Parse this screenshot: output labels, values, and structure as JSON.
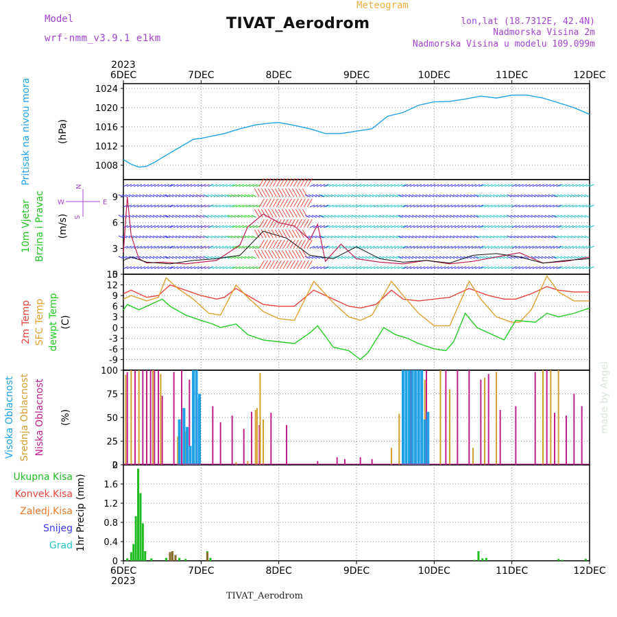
{
  "header": {
    "model_label": "Model",
    "model_name": "wrf-nmm_v3.9.1 e1km",
    "kind": "Meteogram",
    "station": "TIVAT_Aerodrom",
    "lonlat": "lon,lat (18.7312E, 42.4N)",
    "height": "Nadmorska Visina 2m",
    "model_height": "Nadmorska Visina u modelu 109.099m",
    "watermark": "made by Angel",
    "footer": "TIVAT_Aerodrom"
  },
  "colors": {
    "pressure": "#1fa2e6",
    "wind_label": "#22c422",
    "temp2m": "#e8423a",
    "sfc_temp": "#e0a030",
    "dewpt": "#22cc22",
    "high_cloud": "#1fa2e6",
    "mid_cloud": "#d4a030",
    "low_cloud": "#c01f8c",
    "total_precip": "#22bb22",
    "conv_precip": "#e8423a",
    "frozen_precip": "#e87a2a",
    "snow": "#3a3af0",
    "hail": "#22c4c4",
    "header_purple": "#a344d0",
    "header_orange": "#f0b040"
  },
  "chart_data": [
    {
      "id": "pressure",
      "type": "line",
      "title": "",
      "ylabel": "Pritisak na nivou mora",
      "unit": "(hPa)",
      "ylim": [
        1005,
        1025
      ],
      "yticks": [
        "1008",
        "1012",
        "1016",
        "1020",
        "1024"
      ],
      "ytick_values": [
        1008,
        1012,
        1016,
        1020,
        1024
      ],
      "grid": true,
      "x_labels": [
        "6DEC",
        "7DEC",
        "8DEC",
        "9DEC",
        "10DEC",
        "11DEC",
        "12DEC"
      ],
      "x_year": "2023",
      "series": [
        {
          "x": [
            0,
            0.1,
            0.2,
            0.3,
            0.4,
            0.5,
            0.7,
            0.9,
            1.0,
            1.3,
            1.5,
            1.7,
            1.9,
            2.0,
            2.2,
            2.4,
            2.6,
            2.8,
            3.0,
            3.2,
            3.4,
            3.6,
            3.8,
            4.0,
            4.2,
            4.4,
            4.6,
            4.8,
            5.0,
            5.2,
            5.4,
            5.6,
            5.8,
            6.0
          ],
          "y": [
            1009.2,
            1008.2,
            1007.6,
            1007.8,
            1008.6,
            1009.6,
            1011.5,
            1013.4,
            1013.6,
            1014.6,
            1015.6,
            1016.4,
            1016.8,
            1016.9,
            1016.3,
            1015.6,
            1014.6,
            1014.6,
            1015.1,
            1015.6,
            1018.2,
            1019.0,
            1020.5,
            1021.2,
            1021.3,
            1021.8,
            1022.4,
            1022.0,
            1022.6,
            1022.6,
            1022.0,
            1021.0,
            1020.0,
            1018.6
          ]
        }
      ]
    },
    {
      "id": "wind",
      "type": "line",
      "ylabel": "10m Vjetar Brzina i Pravac",
      "unit": "(m/s)",
      "ylim": [
        0,
        11
      ],
      "yticks": [
        "0",
        "3",
        "6",
        "9"
      ],
      "ytick_values": [
        0,
        3,
        6,
        9
      ],
      "compass": "N, W, E, S",
      "grid": true,
      "series": [
        {
          "name": "speed",
          "x": [
            0,
            0.05,
            0.1,
            0.2,
            0.3,
            0.5,
            0.8,
            1.0,
            1.2,
            1.4,
            1.5,
            1.6,
            1.8,
            2.0,
            2.2,
            2.4,
            2.5,
            2.6,
            2.8,
            3.0,
            3.3,
            3.6,
            3.9,
            4.2,
            4.5,
            4.8,
            5.1,
            5.4,
            5.7,
            6.0
          ],
          "y": [
            2.5,
            9.0,
            4.5,
            1.8,
            1.3,
            1.4,
            1.2,
            1.4,
            1.6,
            2.8,
            3.4,
            5.5,
            7.0,
            6.0,
            5.6,
            4.0,
            5.8,
            1.5,
            3.5,
            1.8,
            1.4,
            1.2,
            1.6,
            1.2,
            1.5,
            2.0,
            2.5,
            1.3,
            1.5,
            2.0
          ]
        },
        {
          "name": "gust",
          "x": [
            0,
            0.1,
            0.3,
            0.6,
            0.9,
            1.2,
            1.5,
            1.8,
            2.1,
            2.4,
            2.7,
            3.0,
            3.3,
            3.6,
            3.9,
            4.2,
            4.5,
            4.8,
            5.1,
            5.4,
            5.7,
            6.0
          ],
          "y": [
            1.6,
            2.0,
            1.4,
            1.2,
            1.6,
            1.8,
            2.2,
            5.0,
            4.2,
            2.2,
            1.8,
            3.2,
            1.8,
            1.4,
            1.6,
            1.3,
            2.2,
            2.4,
            2.0,
            1.3,
            1.6,
            1.8
          ]
        }
      ],
      "barb_bands": [
        {
          "from": 0.0,
          "to": 0.6,
          "color": "#3a3af0"
        },
        {
          "from": 0.6,
          "to": 1.0,
          "color": "#3a3af0"
        },
        {
          "from": 1.0,
          "to": 1.1,
          "color": "#6a3ad0"
        },
        {
          "from": 1.1,
          "to": 1.4,
          "color": "#22c4c4"
        },
        {
          "from": 1.4,
          "to": 1.75,
          "color": "#22cc22"
        },
        {
          "from": 1.75,
          "to": 2.4,
          "color": "#ee4a3a"
        },
        {
          "from": 2.4,
          "to": 2.6,
          "color": "#3a3af0"
        },
        {
          "from": 2.6,
          "to": 3.0,
          "color": "#22c4c4"
        },
        {
          "from": 3.0,
          "to": 3.6,
          "color": "#22c4c4"
        },
        {
          "from": 3.6,
          "to": 4.6,
          "color": "#3a3af0"
        },
        {
          "from": 4.6,
          "to": 5.0,
          "color": "#22c4c4"
        },
        {
          "from": 5.0,
          "to": 5.6,
          "color": "#3a3af0"
        },
        {
          "from": 5.6,
          "to": 6.0,
          "color": "#22c4c4"
        }
      ]
    },
    {
      "id": "temperature",
      "type": "line",
      "ylabel": "2m Temp / SFC Temp / dewpt Temp",
      "unit": "(C)",
      "ylim": [
        -12,
        15
      ],
      "yticks": [
        "-9",
        "-6",
        "-3",
        "0",
        "3",
        "6",
        "9",
        "12",
        "15"
      ],
      "ytick_values": [
        -9,
        -6,
        -3,
        0,
        3,
        6,
        9,
        12,
        15
      ],
      "grid": true,
      "series": [
        {
          "name": "2m Temp",
          "x": [
            0,
            0.1,
            0.3,
            0.45,
            0.6,
            0.8,
            1.0,
            1.2,
            1.3,
            1.45,
            1.6,
            1.8,
            2.0,
            2.2,
            2.45,
            2.7,
            2.9,
            3.05,
            3.25,
            3.45,
            3.6,
            3.8,
            4.0,
            4.2,
            4.45,
            4.7,
            4.9,
            5.05,
            5.25,
            5.45,
            5.6,
            5.8,
            6.0
          ],
          "y": [
            9.5,
            10.5,
            8.5,
            9.0,
            12.0,
            10.5,
            9.0,
            8.0,
            8.5,
            11.0,
            9.0,
            6.5,
            6.0,
            6.0,
            10.5,
            8.0,
            6.0,
            5.5,
            6.5,
            10.5,
            8.0,
            7.5,
            8.0,
            8.5,
            11.0,
            9.0,
            8.0,
            8.0,
            9.5,
            11.5,
            10.5,
            10.0,
            10.0
          ]
        },
        {
          "name": "SFC Temp",
          "x": [
            0,
            0.1,
            0.3,
            0.45,
            0.55,
            0.7,
            0.9,
            1.1,
            1.25,
            1.45,
            1.6,
            1.8,
            2.0,
            2.2,
            2.45,
            2.7,
            2.9,
            3.05,
            3.2,
            3.45,
            3.6,
            3.8,
            4.0,
            4.2,
            4.45,
            4.6,
            4.8,
            5.0,
            5.1,
            5.25,
            5.45,
            5.6,
            5.8,
            6.0
          ],
          "y": [
            8.0,
            9.0,
            7.5,
            8.5,
            14.0,
            11.0,
            8.0,
            4.0,
            3.5,
            12.0,
            8.5,
            4.5,
            2.5,
            2.0,
            13.0,
            7.0,
            3.0,
            2.0,
            3.5,
            13.0,
            9.0,
            4.0,
            0.5,
            0.5,
            13.0,
            8.0,
            3.0,
            1.5,
            1.5,
            5.0,
            14.5,
            10.0,
            7.5,
            7.5
          ]
        },
        {
          "name": "dewpt Temp",
          "x": [
            0,
            0.05,
            0.2,
            0.4,
            0.5,
            0.6,
            0.8,
            1.0,
            1.15,
            1.25,
            1.45,
            1.6,
            1.8,
            2.0,
            2.2,
            2.4,
            2.5,
            2.7,
            2.9,
            3.05,
            3.15,
            3.35,
            3.5,
            3.65,
            3.8,
            4.0,
            4.15,
            4.25,
            4.4,
            4.55,
            4.7,
            4.9,
            5.05,
            5.3,
            5.45,
            5.6,
            5.8,
            6.0
          ],
          "y": [
            5.0,
            6.5,
            5.0,
            7.0,
            8.0,
            6.0,
            3.5,
            2.0,
            1.0,
            0.0,
            1.0,
            -2.0,
            -3.5,
            -4.0,
            -4.5,
            -1.5,
            0.5,
            -5.5,
            -6.5,
            -9.0,
            -7.0,
            0.0,
            -2.0,
            -3.0,
            -4.5,
            -6.0,
            -6.5,
            -4.0,
            4.0,
            0.0,
            -1.5,
            -3.5,
            2.0,
            1.5,
            4.0,
            3.0,
            4.0,
            5.5
          ]
        }
      ]
    },
    {
      "id": "clouds",
      "type": "bar",
      "ylabel": "Visoka Oblacnost / Srednja Oblacnost / Niska Oblacnost",
      "unit": "(%)",
      "ylim": [
        0,
        100
      ],
      "yticks": [
        "0",
        "25",
        "50",
        "75",
        "100"
      ],
      "ytick_values": [
        0,
        25,
        50,
        75,
        100
      ],
      "grid": true,
      "series": [
        {
          "name": "Niska Oblacnost",
          "x": [
            0.05,
            0.15,
            0.25,
            0.3,
            0.35,
            0.4,
            0.45,
            0.5,
            0.65,
            0.75,
            0.85,
            0.95,
            1.15,
            1.25,
            1.4,
            1.55,
            1.65,
            1.75,
            1.9,
            2.1,
            2.5,
            2.75,
            2.85,
            3.05,
            3.2,
            3.6,
            3.7,
            3.8,
            3.9,
            4.15,
            4.3,
            4.45,
            4.6,
            4.7,
            4.85,
            5.05,
            5.3,
            5.45,
            5.55,
            5.7,
            5.8,
            5.9
          ],
          "y": [
            98,
            100,
            100,
            100,
            100,
            100,
            100,
            73,
            98,
            100,
            90,
            70,
            62,
            45,
            52,
            38,
            56,
            42,
            55,
            42,
            4,
            8,
            6,
            8,
            6,
            98,
            100,
            95,
            100,
            100,
            100,
            100,
            90,
            96,
            58,
            62,
            98,
            100,
            55,
            52,
            75,
            62
          ]
        },
        {
          "name": "Srednja Oblacnost",
          "x": [
            0.03,
            0.1,
            0.2,
            0.38,
            0.48,
            0.7,
            0.8,
            1.45,
            1.6,
            1.7,
            1.72,
            1.76,
            1.8,
            3.45,
            3.55,
            3.75,
            3.88,
            4.08,
            4.2,
            4.5,
            4.65,
            4.8,
            5.4,
            5.5,
            5.6
          ],
          "y": [
            95,
            100,
            100,
            100,
            96,
            30,
            35,
            3,
            4,
            58,
            60,
            97,
            48,
            18,
            54,
            100,
            90,
            100,
            80,
            18,
            92,
            98,
            100,
            100,
            100
          ]
        },
        {
          "name": "Visoka Oblacnost",
          "x": [
            0.72,
            0.78,
            0.82,
            0.86,
            0.9,
            0.94,
            0.98,
            3.6,
            3.64,
            3.68,
            3.72,
            3.76,
            3.8,
            3.84,
            3.88,
            3.92
          ],
          "y": [
            48,
            60,
            40,
            20,
            100,
            100,
            75,
            100,
            100,
            100,
            100,
            100,
            100,
            100,
            48,
            56
          ]
        }
      ]
    },
    {
      "id": "precip",
      "type": "bar",
      "ylabel": "1hr Precip",
      "unit": "(mm)",
      "ylim": [
        0,
        2
      ],
      "yticks": [
        "0",
        "0.4",
        "0.8",
        "1.2",
        "1.6",
        "2"
      ],
      "ytick_values": [
        0,
        0.4,
        0.8,
        1.2,
        1.6,
        2
      ],
      "legend": [
        "Ukupna Kisa",
        "Konvek.Kisa",
        "Zaledj.Kisa",
        "Snijeg",
        "Grad"
      ],
      "x_labels": [
        "6DEC",
        "7DEC",
        "8DEC",
        "9DEC",
        "10DEC",
        "11DEC",
        "12DEC"
      ],
      "x_year": "2023",
      "grid": true,
      "series": [
        {
          "name": "Ukupna Kisa",
          "x": [
            0.05,
            0.1,
            0.13,
            0.16,
            0.19,
            0.22,
            0.25,
            0.28,
            0.36,
            0.55,
            0.6,
            0.63,
            0.67,
            0.72,
            0.8,
            1.08,
            1.12,
            4.52,
            4.57,
            4.62,
            4.67,
            5.6,
            5.65,
            5.95
          ],
          "y": [
            0.05,
            0.18,
            0.35,
            0.93,
            1.92,
            1.41,
            0.78,
            0.2,
            0.05,
            0.06,
            0.18,
            0.2,
            0.12,
            0.06,
            0.04,
            0.2,
            0.06,
            0.02,
            0.2,
            0.05,
            0.06,
            0.04,
            0.02,
            0.04
          ]
        },
        {
          "name": "Zaledj.Kisa",
          "x": [
            0.6,
            0.63,
            0.67,
            1.08
          ],
          "y": [
            0.18,
            0.2,
            0.12,
            0.18
          ]
        }
      ]
    }
  ]
}
